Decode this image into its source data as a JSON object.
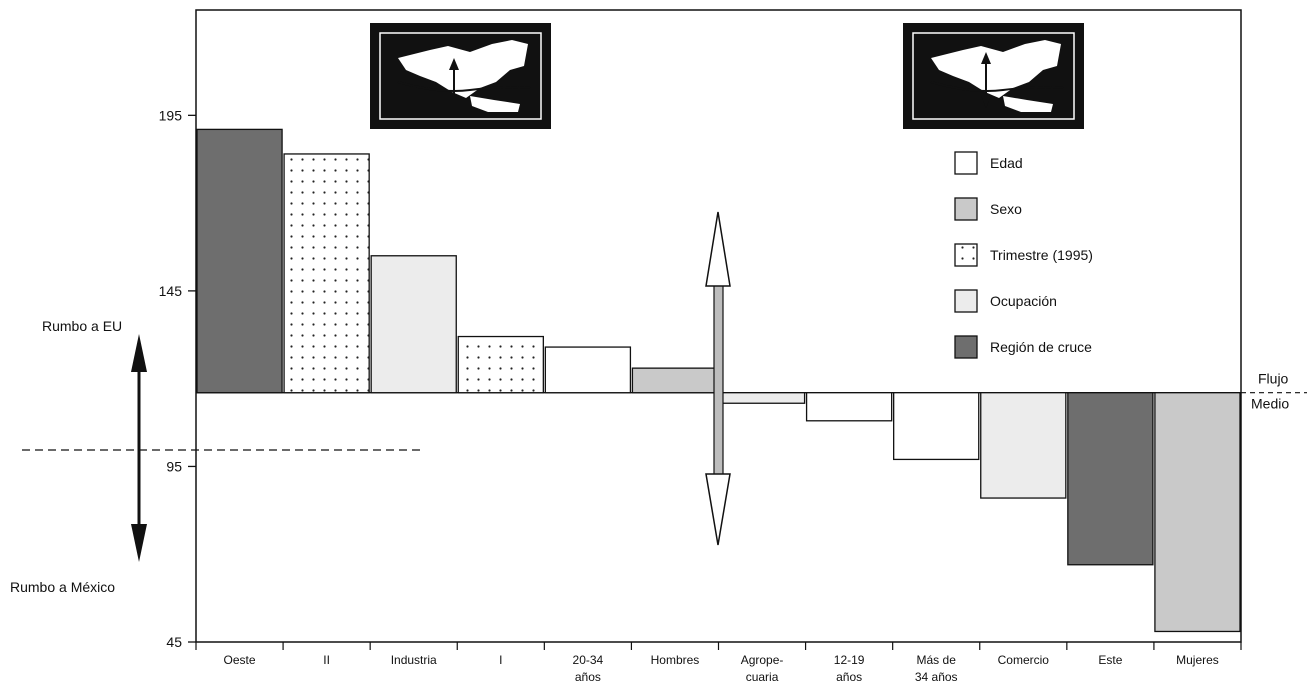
{
  "chart_data": {
    "type": "bar",
    "title": "",
    "xlabel": "",
    "ylabel": "",
    "ylim": [
      45,
      225
    ],
    "yticks": [
      "195",
      "145",
      "95",
      "45"
    ],
    "baseline": 116,
    "baseline_label": [
      "Flujo",
      "Medio"
    ],
    "up_label": "Rumbo a EU",
    "down_label": "Rumbo a México",
    "categories": [
      [
        "Oeste"
      ],
      [
        "II"
      ],
      [
        "Industria"
      ],
      [
        "I"
      ],
      [
        "20-34",
        "años"
      ],
      [
        "Hombres"
      ],
      [
        "Agrope-",
        "cuaria"
      ],
      [
        "12-19",
        "años"
      ],
      [
        "Más de",
        "34 años"
      ],
      [
        "Comercio"
      ],
      [
        "Este"
      ],
      [
        "Mujeres"
      ]
    ],
    "values": [
      191,
      184,
      155,
      132,
      129,
      123,
      113,
      108,
      97,
      86,
      67,
      48
    ],
    "groups": [
      "Región de cruce",
      "Trimestre (1995)",
      "Ocupación",
      "Trimestre (1995)",
      "Edad",
      "Sexo",
      "Ocupación",
      "Edad",
      "Edad",
      "Ocupación",
      "Región de cruce",
      "Sexo"
    ],
    "legend": [
      {
        "label": "Edad",
        "key": "Edad"
      },
      {
        "label": "Sexo",
        "key": "Sexo"
      },
      {
        "label": "Trimestre (1995)",
        "key": "Trimestre (1995)"
      },
      {
        "label": "Ocupación",
        "key": "Ocupación"
      },
      {
        "label": "Región de cruce",
        "key": "Región de cruce"
      }
    ],
    "legend_position": "right",
    "colors": {
      "Edad": "#ffffff",
      "Sexo": "#c9c9c9",
      "Trimestre (1995)": "#ffffff",
      "Ocupación": "#ececec",
      "Región de cruce": "#6e6e6e",
      "stroke": "#111111"
    },
    "icons": [
      "map-arrow-up-icon",
      "map-arrow-double-icon"
    ]
  }
}
